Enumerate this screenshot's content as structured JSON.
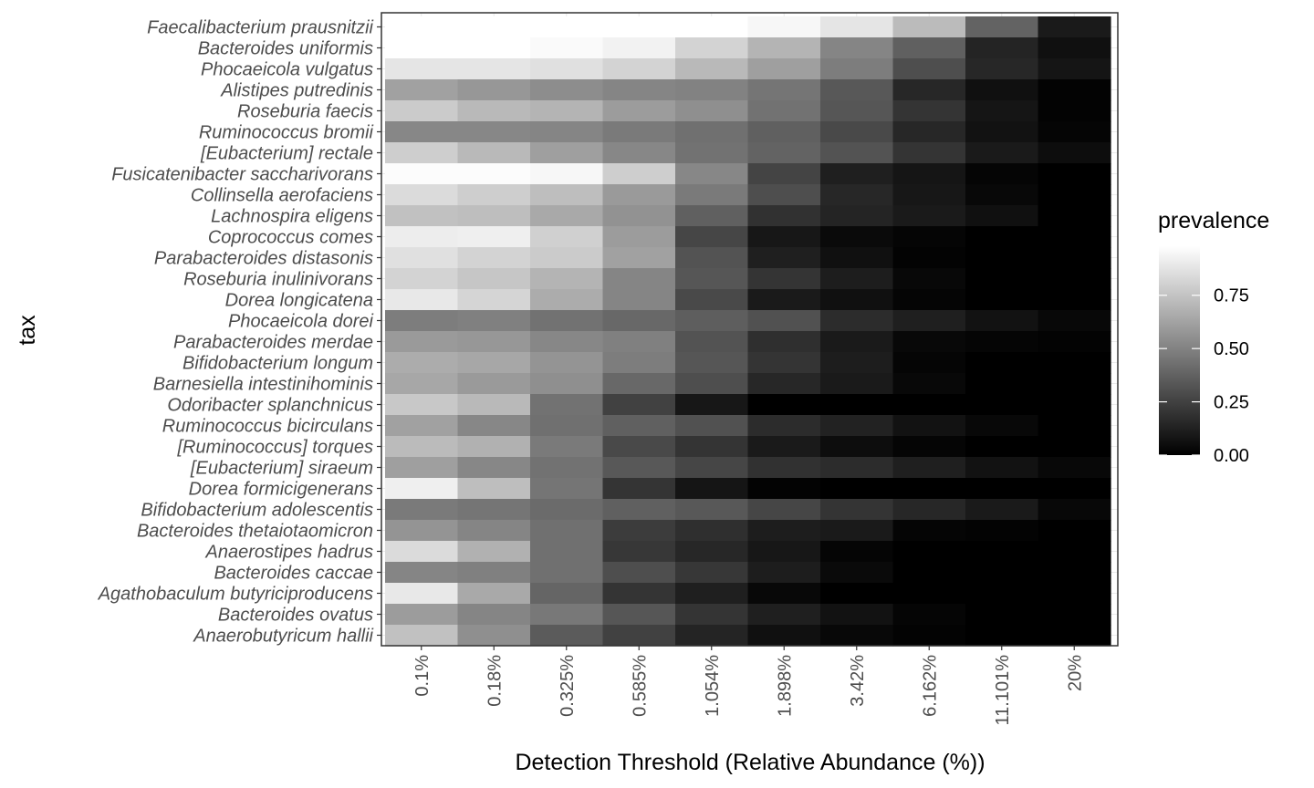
{
  "chart_data": {
    "type": "heatmap",
    "xlabel": "Detection Threshold (Relative Abundance (%))",
    "ylabel": "tax",
    "x_categories": [
      "0.1%",
      "0.18%",
      "0.325%",
      "0.585%",
      "1.054%",
      "1.898%",
      "3.42%",
      "6.162%",
      "11.101%",
      "20%"
    ],
    "y_categories": [
      "Faecalibacterium prausnitzii",
      "Bacteroides uniformis",
      "Phocaeicola vulgatus",
      "Alistipes putredinis",
      "Roseburia faecis",
      "Ruminococcus bromii",
      "[Eubacterium] rectale",
      "Fusicatenibacter saccharivorans",
      "Collinsella aerofaciens",
      "Lachnospira eligens",
      "Coprococcus comes",
      "Parabacteroides distasonis",
      "Roseburia inulinivorans",
      "Dorea longicatena",
      "Phocaeicola dorei",
      "Parabacteroides merdae",
      "Bifidobacterium longum",
      "Barnesiella intestinihominis",
      "Odoribacter splanchnicus",
      "Ruminococcus bicirculans",
      "[Ruminococcus] torques",
      "[Eubacterium] siraeum",
      "Dorea formicigenerans",
      "Bifidobacterium adolescentis",
      "Bacteroides thetaiotaomicron",
      "Anaerostipes hadrus",
      "Bacteroides caccae",
      "Agathobaculum butyriciproducens",
      "Bacteroides ovatus",
      "Anaerobutyricum hallii"
    ],
    "values": [
      [
        1.0,
        1.0,
        1.0,
        0.99,
        0.98,
        0.95,
        0.88,
        0.72,
        0.38,
        0.1
      ],
      [
        1.0,
        1.0,
        0.96,
        0.93,
        0.81,
        0.69,
        0.51,
        0.37,
        0.14,
        0.06
      ],
      [
        0.88,
        0.88,
        0.86,
        0.81,
        0.71,
        0.61,
        0.48,
        0.3,
        0.15,
        0.08
      ],
      [
        0.62,
        0.58,
        0.54,
        0.51,
        0.5,
        0.45,
        0.34,
        0.15,
        0.06,
        0.01
      ],
      [
        0.78,
        0.71,
        0.69,
        0.6,
        0.55,
        0.44,
        0.33,
        0.2,
        0.08,
        0.01
      ],
      [
        0.52,
        0.52,
        0.51,
        0.47,
        0.43,
        0.37,
        0.28,
        0.15,
        0.07,
        0.02
      ],
      [
        0.79,
        0.71,
        0.61,
        0.52,
        0.44,
        0.38,
        0.32,
        0.2,
        0.1,
        0.05
      ],
      [
        0.97,
        0.97,
        0.95,
        0.79,
        0.52,
        0.26,
        0.12,
        0.08,
        0.02,
        0.0
      ],
      [
        0.84,
        0.79,
        0.73,
        0.59,
        0.47,
        0.3,
        0.15,
        0.09,
        0.03,
        0.0
      ],
      [
        0.74,
        0.73,
        0.65,
        0.56,
        0.37,
        0.19,
        0.14,
        0.1,
        0.06,
        0.0
      ],
      [
        0.91,
        0.92,
        0.8,
        0.6,
        0.27,
        0.09,
        0.04,
        0.02,
        0.0,
        0.0
      ],
      [
        0.86,
        0.81,
        0.78,
        0.62,
        0.32,
        0.12,
        0.06,
        0.01,
        0.0,
        0.0
      ],
      [
        0.81,
        0.76,
        0.69,
        0.51,
        0.33,
        0.2,
        0.11,
        0.03,
        0.0,
        0.0
      ],
      [
        0.89,
        0.82,
        0.66,
        0.51,
        0.28,
        0.1,
        0.06,
        0.02,
        0.0,
        0.0
      ],
      [
        0.48,
        0.49,
        0.44,
        0.4,
        0.36,
        0.31,
        0.17,
        0.12,
        0.07,
        0.03
      ],
      [
        0.59,
        0.58,
        0.52,
        0.49,
        0.32,
        0.18,
        0.1,
        0.03,
        0.02,
        0.01
      ],
      [
        0.66,
        0.64,
        0.57,
        0.48,
        0.33,
        0.2,
        0.11,
        0.02,
        0.0,
        0.0
      ],
      [
        0.64,
        0.59,
        0.55,
        0.4,
        0.3,
        0.15,
        0.1,
        0.03,
        0.0,
        0.0
      ],
      [
        0.77,
        0.71,
        0.44,
        0.25,
        0.09,
        0.0,
        0.0,
        0.0,
        0.0,
        0.0
      ],
      [
        0.62,
        0.52,
        0.43,
        0.37,
        0.31,
        0.17,
        0.13,
        0.07,
        0.03,
        0.0
      ],
      [
        0.72,
        0.68,
        0.47,
        0.28,
        0.2,
        0.1,
        0.05,
        0.02,
        0.0,
        0.0
      ],
      [
        0.61,
        0.52,
        0.44,
        0.34,
        0.27,
        0.19,
        0.17,
        0.12,
        0.07,
        0.03
      ],
      [
        0.92,
        0.73,
        0.45,
        0.2,
        0.08,
        0.01,
        0.0,
        0.0,
        0.0,
        0.0
      ],
      [
        0.47,
        0.45,
        0.41,
        0.37,
        0.34,
        0.27,
        0.2,
        0.15,
        0.1,
        0.03
      ],
      [
        0.57,
        0.51,
        0.43,
        0.23,
        0.18,
        0.11,
        0.1,
        0.02,
        0.01,
        0.0
      ],
      [
        0.84,
        0.68,
        0.43,
        0.21,
        0.15,
        0.09,
        0.02,
        0.0,
        0.0,
        0.0
      ],
      [
        0.51,
        0.49,
        0.43,
        0.3,
        0.21,
        0.11,
        0.04,
        0.0,
        0.0,
        0.0
      ],
      [
        0.89,
        0.65,
        0.39,
        0.2,
        0.12,
        0.03,
        0.0,
        0.0,
        0.0,
        0.0
      ],
      [
        0.6,
        0.51,
        0.46,
        0.33,
        0.2,
        0.12,
        0.07,
        0.02,
        0.0,
        0.0
      ],
      [
        0.74,
        0.55,
        0.35,
        0.25,
        0.14,
        0.06,
        0.03,
        0.01,
        0.0,
        0.0
      ]
    ],
    "legend": {
      "title": "prevalence",
      "ticks": [
        {
          "value": 0.0,
          "label": "0.00"
        },
        {
          "value": 0.25,
          "label": "0.25"
        },
        {
          "value": 0.5,
          "label": "0.50"
        },
        {
          "value": 0.75,
          "label": "0.75"
        }
      ],
      "range": [
        0,
        0.98
      ],
      "placement": "right"
    },
    "color_scale": {
      "low": "#000000",
      "high": "#ffffff"
    },
    "grid": true
  }
}
